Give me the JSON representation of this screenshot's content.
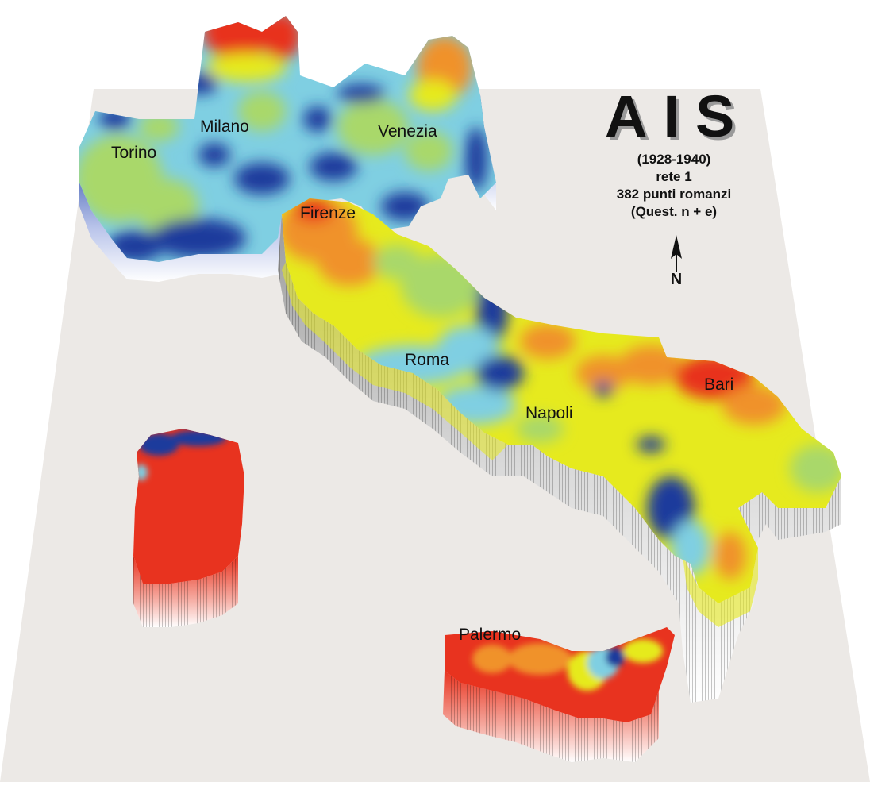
{
  "title": "AIS",
  "subtitle_lines": [
    "(1928-1940)",
    "rete 1",
    "382 punti romanzi",
    "(Quest. n + e)"
  ],
  "north_label": "N",
  "cities": [
    "Torino",
    "Milano",
    "Venezia",
    "Firenze",
    "Roma",
    "Napoli",
    "Bari",
    "Palermo"
  ],
  "colors": {
    "plane": "#ece9e6",
    "red": "#e8331f",
    "orange": "#f0922a",
    "yellow": "#e6ea1e",
    "green": "#a9d86a",
    "cyan": "#7fcfe2",
    "blue": "#1f3a9c",
    "wall_top": "#b8b8b8",
    "wall_bottom": "#ffffff"
  }
}
